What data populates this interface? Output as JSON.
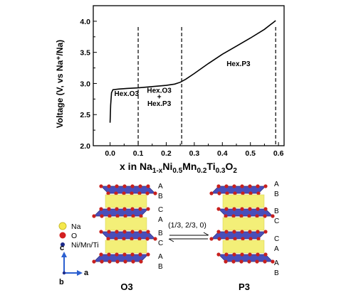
{
  "chart_data": {
    "type": "line",
    "xlabel_parts": {
      "pre": "x in Na",
      "sub1": "1-x",
      "mid1": "Ni",
      "sub2": "0.5",
      "mid2": "Mn",
      "sub3": "0.2",
      "mid3": "Ti",
      "sub4": "0.3",
      "mid4": "O",
      "sub5": "2"
    },
    "ylabel": "Voltage (V, vs Na⁺/Na)",
    "xlim": [
      -0.06,
      0.62
    ],
    "ylim": [
      2.0,
      4.25
    ],
    "xticks": [
      "0.0",
      "0.1",
      "0.2",
      "0.3",
      "0.4",
      "0.5",
      "0.6"
    ],
    "yticks": [
      "2.0",
      "2.5",
      "3.0",
      "3.5",
      "4.0"
    ],
    "xtick_values": [
      0.0,
      0.1,
      0.2,
      0.3,
      0.4,
      0.5,
      0.6
    ],
    "ytick_values": [
      2.0,
      2.5,
      3.0,
      3.5,
      4.0
    ],
    "series": [
      {
        "x": [
          0.0,
          0.002,
          0.005,
          0.01,
          0.03,
          0.06,
          0.1,
          0.15,
          0.2,
          0.23,
          0.25,
          0.27,
          0.3,
          0.35,
          0.4,
          0.45,
          0.5,
          0.55,
          0.59
        ],
        "y": [
          2.37,
          2.65,
          2.85,
          2.9,
          2.91,
          2.92,
          2.93,
          2.95,
          2.97,
          2.99,
          3.02,
          3.07,
          3.16,
          3.32,
          3.47,
          3.6,
          3.73,
          3.87,
          4.01
        ],
        "color": "#000000"
      }
    ],
    "dashed_lines_x": [
      0.1,
      0.255,
      0.59
    ],
    "region_labels": [
      {
        "text": "Hex.O3",
        "x": 0.015,
        "y": 2.8
      },
      {
        "text": "Hex.O3",
        "x": 0.175,
        "y": 2.85
      },
      {
        "text": "+",
        "x": 0.175,
        "y": 2.75
      },
      {
        "text": "Hex.P3",
        "x": 0.175,
        "y": 2.64
      },
      {
        "text": "Hex.P3",
        "x": 0.415,
        "y": 3.28
      }
    ]
  },
  "legend": {
    "items": [
      {
        "label": "Na",
        "color": "#f5e84b"
      },
      {
        "label": "O",
        "color": "#d32020"
      },
      {
        "label": "Ni/Mn/Ti",
        "color": "#1c2a8a"
      }
    ],
    "axis_c": "c",
    "axis_a": "a",
    "axis_b": "b"
  },
  "structures": {
    "o3_label": "O3",
    "p3_label": "P3",
    "transition_label": "(1/3, 2/3, 0)",
    "o3_stacking": [
      "A",
      "B",
      "C",
      "A",
      "B",
      "C",
      "A",
      "B"
    ],
    "p3_stacking": [
      "A",
      "B",
      "B",
      "C",
      "C",
      "A",
      "A",
      "B"
    ],
    "colors": {
      "slab": "#3a3fb5",
      "na_layer": "#f2ee6a",
      "oxygen": "#c8201e"
    }
  }
}
